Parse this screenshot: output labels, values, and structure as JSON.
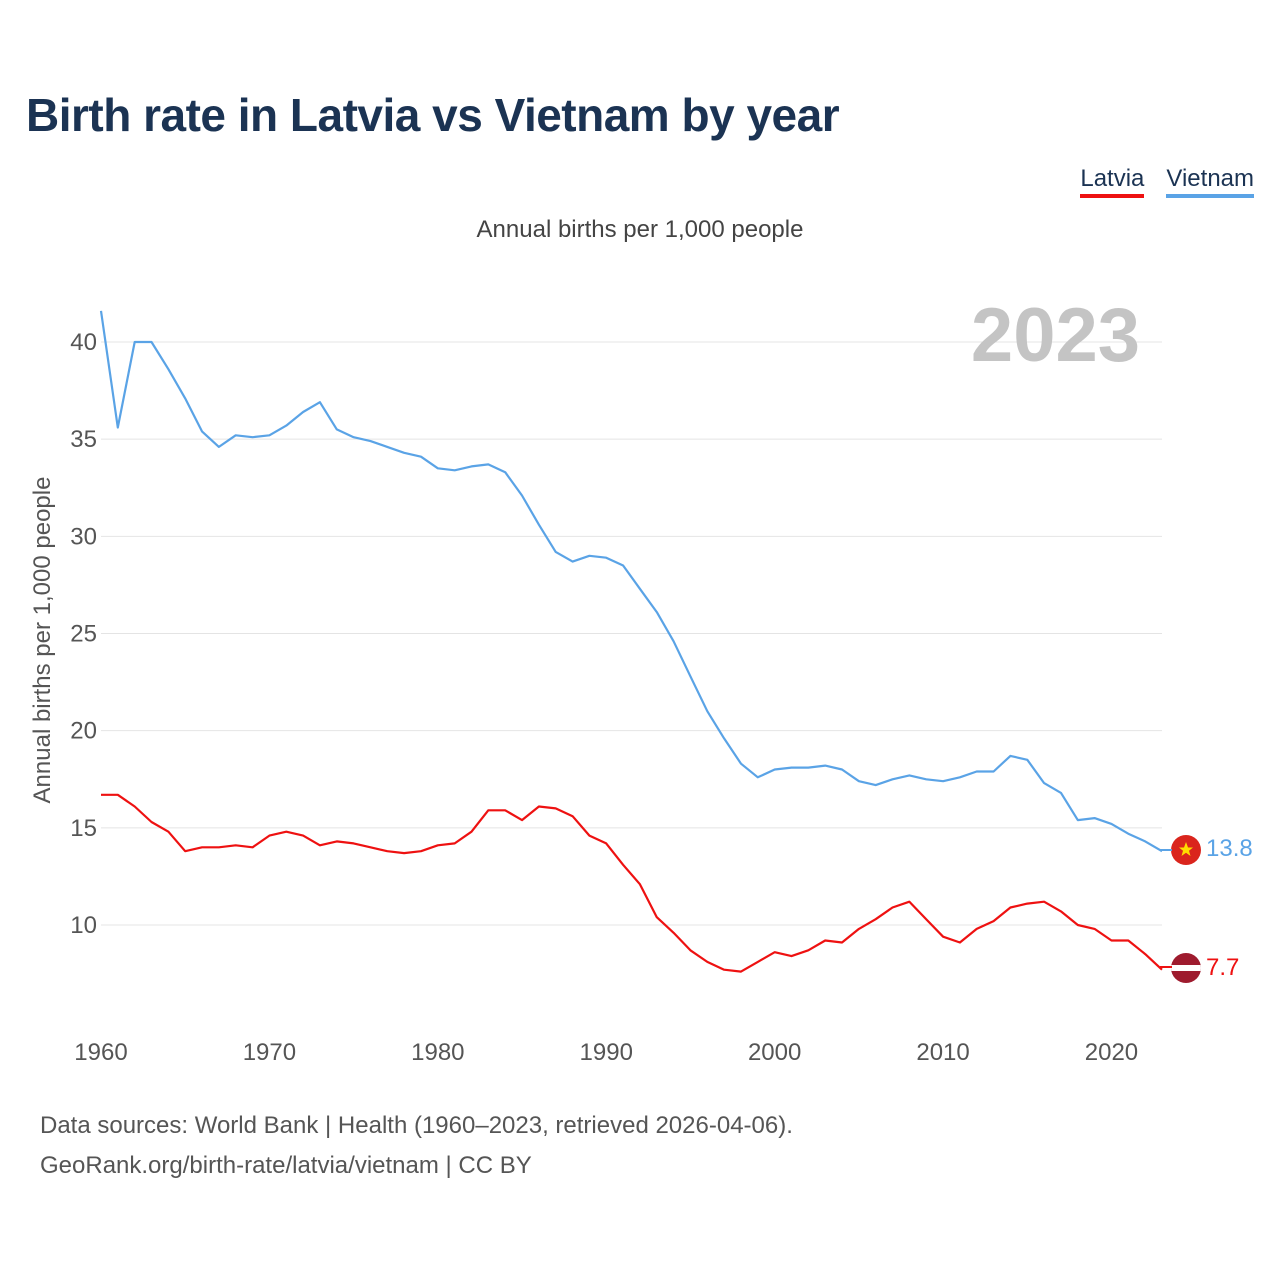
{
  "title": "Birth rate in Latvia vs Vietnam by year",
  "subtitle": "Annual births per 1,000 people",
  "legend": [
    {
      "name": "Latvia",
      "color": "#ee1111"
    },
    {
      "name": "Vietnam",
      "color": "#5aa3e6"
    }
  ],
  "year_watermark": "2023",
  "end_labels": {
    "latvia": "7.7",
    "vietnam": "13.8"
  },
  "sources": {
    "line1": "Data sources: World Bank | Health (1960–2023, retrieved 2026-04-06).",
    "line2": "GeoRank.org/birth-rate/latvia/vietnam | CC BY"
  },
  "chart_data": {
    "type": "line",
    "title": "Birth rate in Latvia vs Vietnam by year",
    "xlabel": "",
    "ylabel": "Annual births per 1,000 people",
    "xlim": [
      1960,
      2023
    ],
    "ylim": [
      6.5,
      42
    ],
    "y_ticks": [
      10,
      15,
      20,
      25,
      30,
      35,
      40
    ],
    "x_ticks": [
      1960,
      1970,
      1980,
      1990,
      2000,
      2010,
      2020
    ],
    "grid": true,
    "legend_position": "top-right",
    "start_year": 1960,
    "series": [
      {
        "name": "Latvia",
        "color": "#ee1111",
        "values": [
          16.7,
          16.7,
          16.1,
          15.3,
          14.8,
          13.8,
          14.0,
          14.0,
          14.1,
          14.0,
          14.6,
          14.8,
          14.6,
          14.1,
          14.3,
          14.2,
          14.0,
          13.8,
          13.7,
          13.8,
          14.1,
          14.2,
          14.8,
          15.9,
          15.9,
          15.4,
          16.1,
          16.0,
          15.6,
          14.6,
          14.2,
          13.1,
          12.1,
          10.4,
          9.6,
          8.7,
          8.1,
          7.7,
          7.6,
          8.1,
          8.6,
          8.4,
          8.7,
          9.2,
          9.1,
          9.8,
          10.3,
          10.9,
          11.2,
          10.3,
          9.4,
          9.1,
          9.8,
          10.2,
          10.9,
          11.1,
          11.2,
          10.7,
          10.0,
          9.8,
          9.2,
          9.2,
          8.5,
          7.7
        ]
      },
      {
        "name": "Vietnam",
        "color": "#5aa3e6",
        "values": [
          41.6,
          35.6,
          40.0,
          40.0,
          38.6,
          37.1,
          35.4,
          34.6,
          35.2,
          35.1,
          35.2,
          35.7,
          36.4,
          36.9,
          35.5,
          35.1,
          34.9,
          34.6,
          34.3,
          34.1,
          33.5,
          33.4,
          33.6,
          33.7,
          33.3,
          32.1,
          30.6,
          29.2,
          28.7,
          29.0,
          28.9,
          28.5,
          27.3,
          26.1,
          24.6,
          22.8,
          21.0,
          19.6,
          18.3,
          17.6,
          18.0,
          18.1,
          18.1,
          18.2,
          18.0,
          17.4,
          17.2,
          17.5,
          17.7,
          17.5,
          17.4,
          17.6,
          17.9,
          17.9,
          18.7,
          18.5,
          17.3,
          16.8,
          15.4,
          15.5,
          15.2,
          14.7,
          14.3,
          13.8
        ]
      }
    ]
  }
}
